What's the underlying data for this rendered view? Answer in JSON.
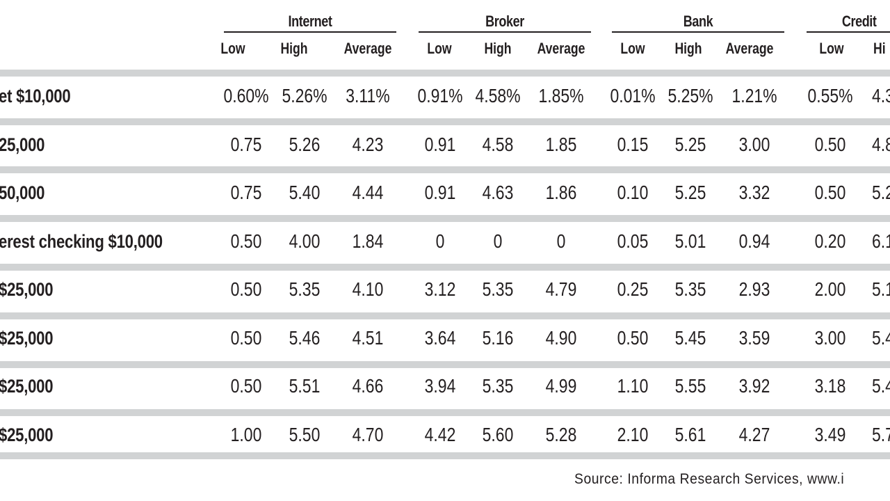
{
  "groups": [
    {
      "label": "Internet"
    },
    {
      "label": "Broker"
    },
    {
      "label": "Bank"
    },
    {
      "label": "Credit"
    }
  ],
  "subheaders": [
    "Low",
    "High",
    "Average",
    "Low",
    "High",
    "Average",
    "Low",
    "High",
    "Average",
    "Low",
    "Hi"
  ],
  "rows": [
    {
      "label": "et $10,000",
      "values": [
        "0.60%",
        "5.26%",
        "3.11%",
        "0.91%",
        "4.58%",
        "1.85%",
        "0.01%",
        "5.25%",
        "1.21%",
        "0.55%",
        "4.3"
      ]
    },
    {
      "label": "25,000",
      "values": [
        "0.75",
        "5.26",
        "4.23",
        "0.91",
        "4.58",
        "1.85",
        "0.15",
        "5.25",
        "3.00",
        "0.50",
        "4.8"
      ]
    },
    {
      "label": "50,000",
      "values": [
        "0.75",
        "5.40",
        "4.44",
        "0.91",
        "4.63",
        "1.86",
        "0.10",
        "5.25",
        "3.32",
        "0.50",
        "5.2"
      ]
    },
    {
      "label": "erest checking $10,000",
      "values": [
        "0.50",
        "4.00",
        "1.84",
        "0",
        "0",
        "0",
        "0.05",
        "5.01",
        "0.94",
        "0.20",
        "6.1"
      ]
    },
    {
      "label": "$25,000",
      "values": [
        "0.50",
        "5.35",
        "4.10",
        "3.12",
        "5.35",
        "4.79",
        "0.25",
        "5.35",
        "2.93",
        "2.00",
        "5.1"
      ]
    },
    {
      "label": "$25,000",
      "values": [
        "0.50",
        "5.46",
        "4.51",
        "3.64",
        "5.16",
        "4.90",
        "0.50",
        "5.45",
        "3.59",
        "3.00",
        "5.4"
      ]
    },
    {
      "label": "$25,000",
      "values": [
        "0.50",
        "5.51",
        "4.66",
        "3.94",
        "5.35",
        "4.99",
        "1.10",
        "5.55",
        "3.92",
        "3.18",
        "5.4"
      ]
    },
    {
      "label": "$25,000",
      "values": [
        "1.00",
        "5.50",
        "4.70",
        "4.42",
        "5.60",
        "5.28",
        "2.10",
        "5.61",
        "4.27",
        "3.49",
        "5.7"
      ]
    }
  ],
  "source": "Source: Informa Research Services, www.i"
}
